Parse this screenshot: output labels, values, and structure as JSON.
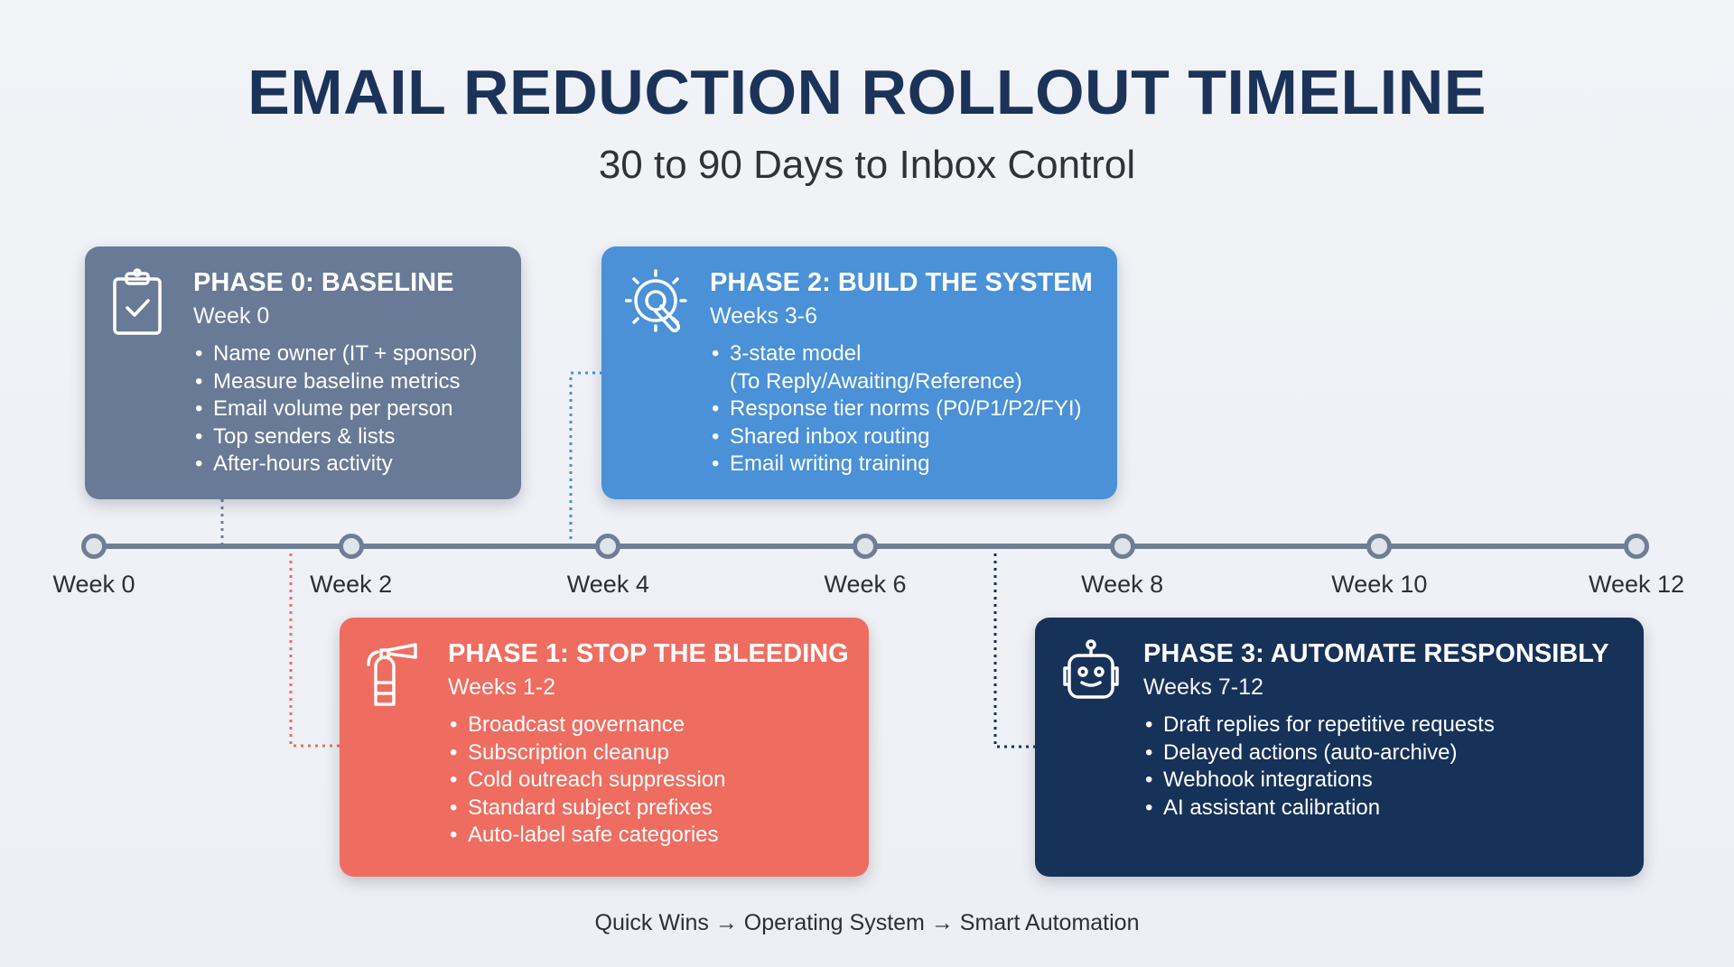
{
  "header": {
    "title": "EMAIL REDUCTION ROLLOUT TIMELINE",
    "subtitle": "30 to 90 Days to Inbox Control"
  },
  "timeline": {
    "ticks": [
      "Week 0",
      "Week 2",
      "Week 4",
      "Week 6",
      "Week 8",
      "Week 10",
      "Week 12"
    ]
  },
  "colors": {
    "phase0": "#687a96",
    "phase1": "#ef6d60",
    "phase2": "#4a91d7",
    "phase3": "#173259",
    "title": "#1b3358"
  },
  "phases": [
    {
      "icon": "clipboard-check-icon",
      "title": "PHASE 0: BASELINE",
      "weeks": "Week 0",
      "items": [
        "Name owner (IT + sponsor)",
        "Measure baseline metrics",
        "Email volume per person",
        "Top senders & lists",
        "After-hours activity"
      ]
    },
    {
      "icon": "fire-extinguisher-icon",
      "title": "PHASE 1: STOP THE BLEEDING",
      "weeks": "Weeks 1-2",
      "items": [
        "Broadcast governance",
        "Subscription cleanup",
        "Cold outreach suppression",
        "Standard subject prefixes",
        "Auto-label safe categories"
      ]
    },
    {
      "icon": "gear-wrench-icon",
      "title": "PHASE 2: BUILD THE SYSTEM",
      "weeks": "Weeks 3-6",
      "items": [
        "3-state model",
        "(To Reply/Awaiting/Reference)",
        "Response tier norms (P0/P1/P2/FYI)",
        "Shared inbox routing",
        "Email writing training"
      ]
    },
    {
      "icon": "robot-icon",
      "title": "PHASE 3: AUTOMATE RESPONSIBLY",
      "weeks": "Weeks 7-12",
      "items": [
        "Draft replies for repetitive requests",
        "Delayed actions (auto-archive)",
        "Webhook integrations",
        "AI assistant calibration"
      ]
    }
  ],
  "footer": "Quick Wins → Operating System → Smart Automation"
}
